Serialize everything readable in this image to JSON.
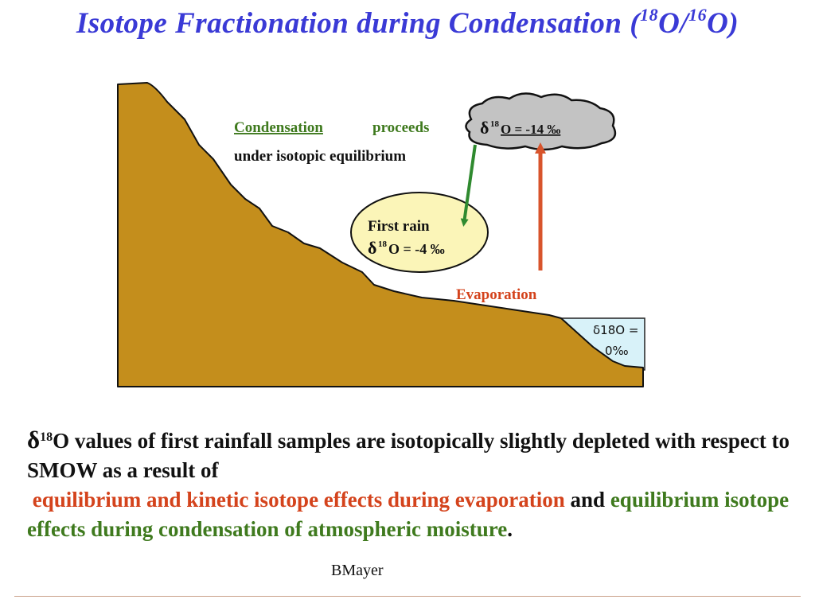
{
  "title": {
    "main": "Isotope Fractionation during Condensation (",
    "sup1": "18",
    "mid": "O/",
    "sup2": "16",
    "end": "O)"
  },
  "diagram": {
    "condensation_word": "Condensation",
    "proceeds": "proceeds",
    "equilibrium_line": "under isotopic equilibrium",
    "cloud_delta": "δ",
    "cloud_sup": "18",
    "cloud_value": "O = -14 ‰",
    "rain_line1": "First rain",
    "rain_delta": "δ",
    "rain_sup": "18",
    "rain_value": "O = -4 ‰",
    "evaporation": "Evaporation",
    "ocean_line1": "δ18O =",
    "ocean_line2": "0‰",
    "colors": {
      "hill": "#c48e1c",
      "water": "#d8f2f9",
      "cloud": "#c3c3c3",
      "rain_ellipse": "#fbf5b8",
      "green_arrow": "#2f8a2f",
      "red_arrow": "#d8542c",
      "green_text": "#3f7a1e",
      "red_text": "#d4431c"
    }
  },
  "caption": {
    "delta": "δ",
    "sup": "18",
    "part1": "O values of first rainfall samples are isotopically slightly depleted with respect to SMOW as a result of",
    "red_part": "equilibrium and kinetic isotope effects during evaporation",
    "and_word": "and",
    "green_part": "equilibrium isotope effects  during condensation of atmospheric moisture",
    "period": "."
  },
  "author": "BMayer"
}
